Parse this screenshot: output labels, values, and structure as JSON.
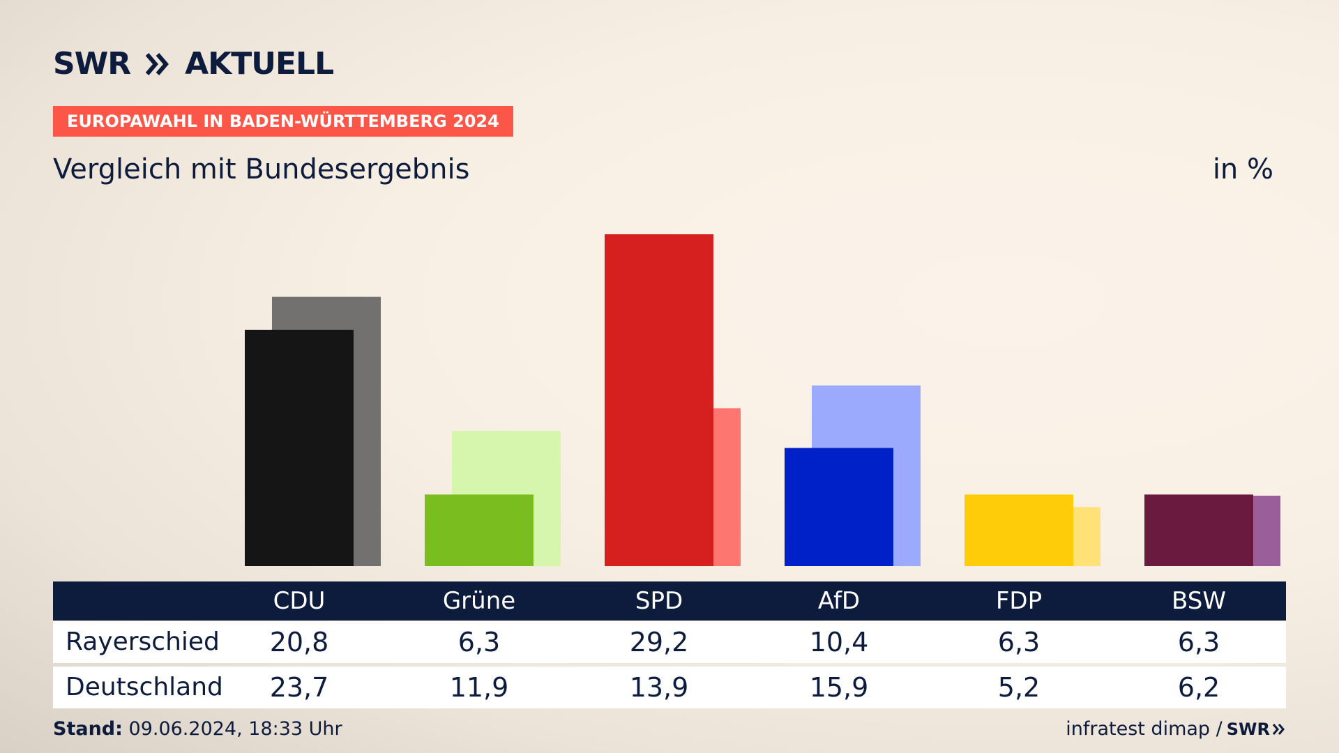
{
  "brand": {
    "logo_text_left": "SWR",
    "logo_text_right": "AKTUELL",
    "footer_logo": "SWR"
  },
  "badge": "EUROPAWAHL IN BADEN-WÜRTTEMBERG 2024",
  "subtitle": "Vergleich mit Bundesergebnis",
  "unit": "in %",
  "footer": {
    "stand_label": "Stand:",
    "stand_value": "09.06.2024, 18:33 Uhr",
    "source": "infratest dimap /"
  },
  "table": {
    "row_labels": [
      "Rayerschied",
      "Deutschland"
    ]
  },
  "chart_data": {
    "type": "bar",
    "categories": [
      "CDU",
      "Grüne",
      "SPD",
      "AfD",
      "FDP",
      "BSW"
    ],
    "series": [
      {
        "name": "Rayerschied",
        "values": [
          20.8,
          6.3,
          29.2,
          10.4,
          6.3,
          6.3
        ],
        "colors": [
          "#151515",
          "#7abd1e",
          "#d61f1f",
          "#0020c8",
          "#ffcc0a",
          "#6a1a3f"
        ]
      },
      {
        "name": "Deutschland",
        "values": [
          23.7,
          11.9,
          13.9,
          15.9,
          5.2,
          6.2
        ],
        "colors": [
          "#737070",
          "#d6f5ad",
          "#fe7670",
          "#9caafe",
          "#fee277",
          "#9a5e9a"
        ]
      }
    ],
    "value_labels": {
      "Rayerschied": [
        "20,8",
        "6,3",
        "29,2",
        "10,4",
        "6,3",
        "6,3"
      ],
      "Deutschland": [
        "23,7",
        "11,9",
        "13,9",
        "15,9",
        "5,2",
        "6,2"
      ]
    },
    "ylim": [
      0,
      30
    ],
    "grid": false,
    "legend": "none"
  }
}
